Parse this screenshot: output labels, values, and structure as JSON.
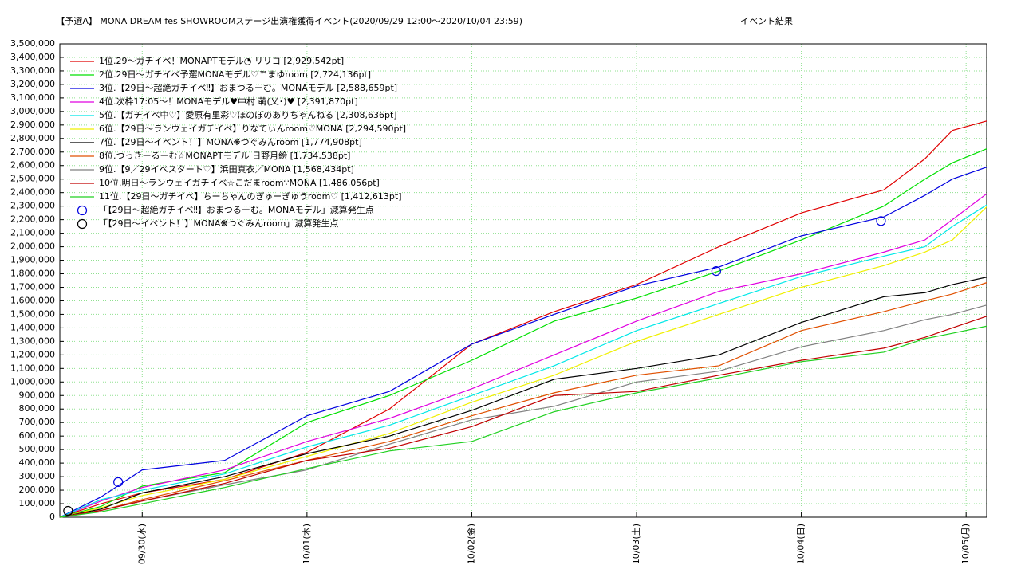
{
  "chart_data": {
    "type": "line",
    "title": "【予選A】 MONA DREAM fes SHOWROOMステージ出演権獲得イベント(2020/09/29 12:00〜2020/10/04 23:59)",
    "subtitle": "イベント結果",
    "grid": true,
    "legend": "upper left",
    "xlim": [
      0,
      135
    ],
    "xticks": [
      {
        "value": 12,
        "label": "09/30(水)"
      },
      {
        "value": 36,
        "label": "10/01(木)"
      },
      {
        "value": 60,
        "label": "10/02(金)"
      },
      {
        "value": 84,
        "label": "10/03(土)"
      },
      {
        "value": 108,
        "label": "10/04(日)"
      },
      {
        "value": 132,
        "label": "10/05(月)"
      }
    ],
    "ylim": [
      0,
      3500000
    ],
    "yticks": [
      0,
      {
        "value": 100000,
        "label": "100,000"
      },
      {
        "value": 200000,
        "label": "200,000"
      },
      {
        "value": 300000,
        "label": "300,000"
      },
      {
        "value": 400000,
        "label": "400,000"
      },
      {
        "value": 500000,
        "label": "500,000"
      },
      {
        "value": 600000,
        "label": "600,000"
      },
      {
        "value": 700000,
        "label": "700,000"
      },
      {
        "value": 800000,
        "label": "800,000"
      },
      {
        "value": 900000,
        "label": "900,000"
      },
      {
        "value": 1000000,
        "label": "1,000,000"
      },
      {
        "value": 1100000,
        "label": "1,100,000"
      },
      {
        "value": 1200000,
        "label": "1,200,000"
      },
      {
        "value": 1300000,
        "label": "1,300,000"
      },
      {
        "value": 1400000,
        "label": "1,400,000"
      },
      {
        "value": 1500000,
        "label": "1,500,000"
      },
      {
        "value": 1600000,
        "label": "1,600,000"
      },
      {
        "value": 1700000,
        "label": "1,700,000"
      },
      {
        "value": 1800000,
        "label": "1,800,000"
      },
      {
        "value": 1900000,
        "label": "1,900,000"
      },
      {
        "value": 2000000,
        "label": "2,000,000"
      },
      {
        "value": 2100000,
        "label": "2,100,000"
      },
      {
        "value": 2200000,
        "label": "2,200,000"
      },
      {
        "value": 2300000,
        "label": "2,300,000"
      },
      {
        "value": 2400000,
        "label": "2,400,000"
      },
      {
        "value": 2500000,
        "label": "2,500,000"
      },
      {
        "value": 2600000,
        "label": "2,600,000"
      },
      {
        "value": 2700000,
        "label": "2,700,000"
      },
      {
        "value": 2800000,
        "label": "2,800,000"
      },
      {
        "value": 2900000,
        "label": "2,900,000"
      },
      {
        "value": 3000000,
        "label": "3,000,000"
      },
      {
        "value": 3100000,
        "label": "3,100,000"
      },
      {
        "value": 3200000,
        "label": "3,200,000"
      },
      {
        "value": 3300000,
        "label": "3,300,000"
      },
      {
        "value": 3400000,
        "label": "3,400,000"
      },
      {
        "value": 3500000,
        "label": "3,500,000"
      }
    ],
    "x": [
      0,
      6,
      12,
      24,
      36,
      48,
      60,
      72,
      84,
      96,
      108,
      120,
      126,
      130,
      135
    ],
    "series": [
      {
        "name": "1位.29〜ガチイベ！MONAPTモデル◔ リリコ [2,929,542pt]",
        "color": "#e00000",
        "values": [
          0,
          100000,
          180000,
          280000,
          480000,
          800000,
          1280000,
          1520000,
          1720000,
          2000000,
          2250000,
          2420000,
          2650000,
          2860000,
          2929542
        ]
      },
      {
        "name": "2位.29日〜ガチイベ予選MONAモデル♡™まゆroom [2,724,136pt]",
        "color": "#00e000",
        "values": [
          0,
          80000,
          230000,
          330000,
          700000,
          900000,
          1160000,
          1450000,
          1620000,
          1820000,
          2050000,
          2300000,
          2500000,
          2620000,
          2724136
        ]
      },
      {
        "name": "3位.【29日〜超絶ガチイベ‼】おまつるーむ。MONAモデル [2,588,659pt]",
        "color": "#0000e0",
        "values": [
          0,
          150000,
          350000,
          420000,
          750000,
          930000,
          1280000,
          1500000,
          1710000,
          1850000,
          2080000,
          2220000,
          2380000,
          2500000,
          2588659
        ]
      },
      {
        "name": "4位.次枠17:05〜！MONAモデル♥中村 萌(乂･)♥ [2,391,870pt]",
        "color": "#e000e0",
        "values": [
          0,
          120000,
          220000,
          350000,
          560000,
          730000,
          950000,
          1200000,
          1450000,
          1670000,
          1800000,
          1960000,
          2050000,
          2200000,
          2391870
        ]
      },
      {
        "name": "5位.【ガチイベ中♡】愛原有里彩♡ほのぼのありちゃんねる [2,308,636pt]",
        "color": "#00e8e8",
        "values": [
          0,
          130000,
          200000,
          320000,
          520000,
          680000,
          900000,
          1120000,
          1380000,
          1580000,
          1780000,
          1930000,
          2000000,
          2150000,
          2308636
        ]
      },
      {
        "name": "6位.【29日〜ランウェイガチイベ】りなてぃんroom♡MONA [2,294,590pt]",
        "color": "#f0f000",
        "values": [
          0,
          70000,
          160000,
          280000,
          450000,
          620000,
          850000,
          1050000,
          1300000,
          1500000,
          1700000,
          1860000,
          1960000,
          2050000,
          2294590
        ]
      },
      {
        "name": "7位.【29日〜イベント！】MONA❋つぐみんroom [1,774,908pt]",
        "color": "#000000",
        "values": [
          0,
          60000,
          180000,
          300000,
          470000,
          600000,
          790000,
          1020000,
          1100000,
          1200000,
          1440000,
          1630000,
          1660000,
          1720000,
          1774908
        ]
      },
      {
        "name": "8位.つっきーるーむ☆MONAPTモデル 日野月絵 [1,734,538pt]",
        "color": "#e05000",
        "values": [
          0,
          50000,
          130000,
          270000,
          420000,
          560000,
          750000,
          920000,
          1050000,
          1120000,
          1380000,
          1520000,
          1600000,
          1650000,
          1734538
        ]
      },
      {
        "name": "9位.【9／29イベスタート♡】浜田真衣／MONA [1,568,434pt]",
        "color": "#808080",
        "values": [
          0,
          50000,
          120000,
          240000,
          350000,
          540000,
          720000,
          820000,
          1000000,
          1080000,
          1260000,
          1380000,
          1460000,
          1500000,
          1568434
        ]
      },
      {
        "name": "10位.明日〜ランウェイガチイベ☆こだまroom∵MONA [1,486,056pt]",
        "color": "#c00000",
        "values": [
          0,
          50000,
          120000,
          250000,
          420000,
          510000,
          670000,
          900000,
          930000,
          1050000,
          1160000,
          1250000,
          1330000,
          1400000,
          1486056
        ]
      },
      {
        "name": "11位.【29日〜ガチイベ】ちーちゃんのぎゅーぎゅうroom♡ [1,412,613pt]",
        "color": "#20d020",
        "values": [
          0,
          40000,
          100000,
          220000,
          360000,
          490000,
          560000,
          780000,
          920000,
          1030000,
          1150000,
          1220000,
          1320000,
          1360000,
          1412613
        ]
      }
    ],
    "markers": [
      {
        "name": "「【29日〜超絶ガチイベ‼】おまつるーむ。MONAモデル」減算発生点",
        "color": "#0000e0",
        "x": [
          8.5,
          95.6,
          119.6
        ],
        "y": [
          260000,
          1820000,
          2190000
        ]
      },
      {
        "name": "「【29日〜イベント！】MONA❋つぐみんroom」減算発生点",
        "color": "#000000",
        "x": [
          1.2
        ],
        "y": [
          47000
        ]
      }
    ]
  }
}
